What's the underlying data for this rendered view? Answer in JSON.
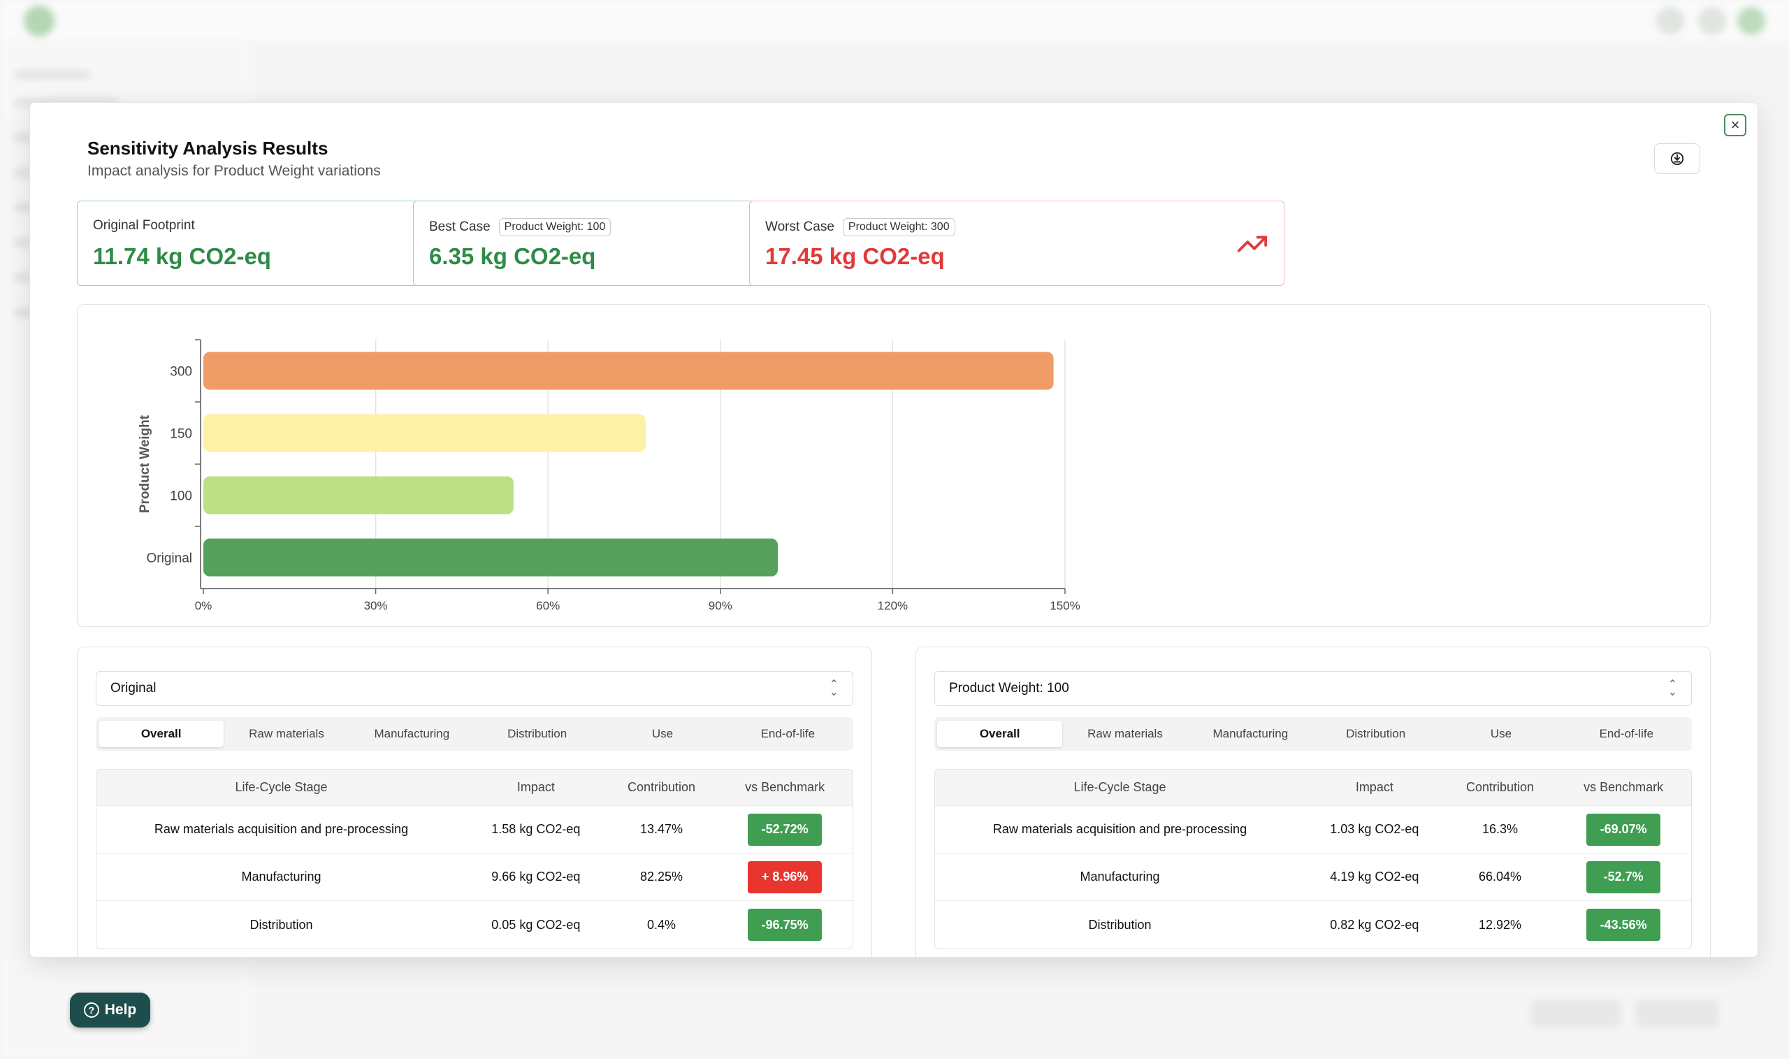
{
  "modal": {
    "title": "Sensitivity Analysis Results",
    "subtitle": "Impact analysis for Product Weight variations"
  },
  "summary": {
    "original": {
      "label": "Original Footprint",
      "value": "11.74 kg CO2-eq",
      "icon": "leaf-icon"
    },
    "best": {
      "label": "Best Case",
      "tag": "Product Weight: 100",
      "value": "6.35 kg CO2-eq",
      "icon": "trending-down-icon"
    },
    "worst": {
      "label": "Worst Case",
      "tag": "Product Weight: 300",
      "value": "17.45 kg CO2-eq",
      "icon": "trending-up-icon"
    }
  },
  "colors": {
    "green": "#2e8b46",
    "red": "#e03a3a",
    "good_badge": "#3f9e52",
    "bad_badge": "#e8352e"
  },
  "chart_data": {
    "type": "bar",
    "orientation": "horizontal",
    "ylabel": "Product Weight",
    "categories": [
      "300",
      "150",
      "100",
      "Original"
    ],
    "values": [
      148,
      77,
      54,
      100
    ],
    "colors": [
      "#ef9c66",
      "#fcf1a7",
      "#bddf86",
      "#55a05b"
    ],
    "xlim": [
      0,
      150
    ],
    "xticks": [
      "0%",
      "30%",
      "60%",
      "90%",
      "120%",
      "150%"
    ],
    "grid": true
  },
  "left_panel": {
    "selected": "Original",
    "tabs": [
      "Overall",
      "Raw materials",
      "Manufacturing",
      "Distribution",
      "Use",
      "End-of-life"
    ],
    "active_tab": "Overall",
    "columns": [
      "Life-Cycle Stage",
      "Impact",
      "Contribution",
      "vs Benchmark"
    ],
    "rows": [
      {
        "stage": "Raw materials acquisition and pre-processing",
        "impact": "1.58 kg CO2-eq",
        "contribution": "13.47%",
        "benchmark": "-52.72%",
        "status": "good"
      },
      {
        "stage": "Manufacturing",
        "impact": "9.66 kg CO2-eq",
        "contribution": "82.25%",
        "benchmark": "+ 8.96%",
        "status": "bad"
      },
      {
        "stage": "Distribution",
        "impact": "0.05 kg CO2-eq",
        "contribution": "0.4%",
        "benchmark": "-96.75%",
        "status": "good"
      }
    ]
  },
  "right_panel": {
    "selected": "Product Weight: 100",
    "tabs": [
      "Overall",
      "Raw materials",
      "Manufacturing",
      "Distribution",
      "Use",
      "End-of-life"
    ],
    "active_tab": "Overall",
    "columns": [
      "Life-Cycle Stage",
      "Impact",
      "Contribution",
      "vs Benchmark"
    ],
    "rows": [
      {
        "stage": "Raw materials acquisition and pre-processing",
        "impact": "1.03 kg CO2-eq",
        "contribution": "16.3%",
        "benchmark": "-69.07%",
        "status": "good"
      },
      {
        "stage": "Manufacturing",
        "impact": "4.19 kg CO2-eq",
        "contribution": "66.04%",
        "benchmark": "-52.7%",
        "status": "good"
      },
      {
        "stage": "Distribution",
        "impact": "0.82 kg CO2-eq",
        "contribution": "12.92%",
        "benchmark": "-43.56%",
        "status": "good"
      }
    ]
  },
  "help": {
    "label": "Help"
  }
}
